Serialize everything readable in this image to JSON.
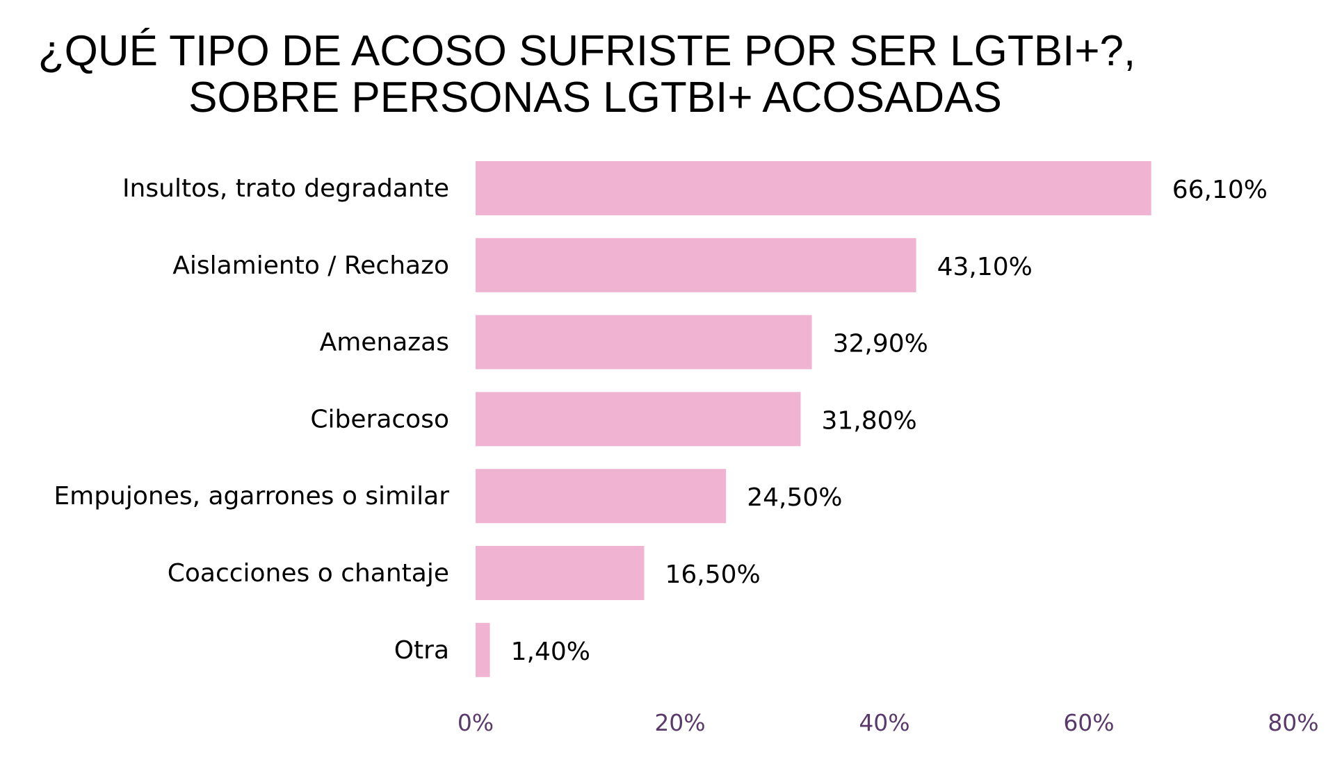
{
  "chart_data": {
    "type": "bar",
    "orientation": "horizontal",
    "title": [
      "¿QUÉ TIPO DE ACOSO SUFRISTE POR SER LGTBI+?,",
      "SOBRE PERSONAS LGTBI+ ACOSADAS"
    ],
    "categories": [
      "Insultos, trato degradante",
      "Aislamiento / Rechazo",
      "Amenazas",
      "Ciberacoso",
      "Empujones, agarrones o similar",
      "Coacciones o chantaje",
      "Otra"
    ],
    "values": [
      66.1,
      43.1,
      32.9,
      31.8,
      24.5,
      16.5,
      1.4
    ],
    "value_labels": [
      "66,10%",
      "43,10%",
      "32,90%",
      "31,80%",
      "24,50%",
      "16,50%",
      "1,40%"
    ],
    "xlim": [
      0,
      80
    ],
    "ticks": [
      0,
      20,
      40,
      60,
      80
    ],
    "tick_labels": [
      "0%",
      "20%",
      "40%",
      "60%",
      "80%"
    ],
    "grid": false,
    "bar_color": "#f0b4d2",
    "tick_color": "#5a3a6a"
  }
}
